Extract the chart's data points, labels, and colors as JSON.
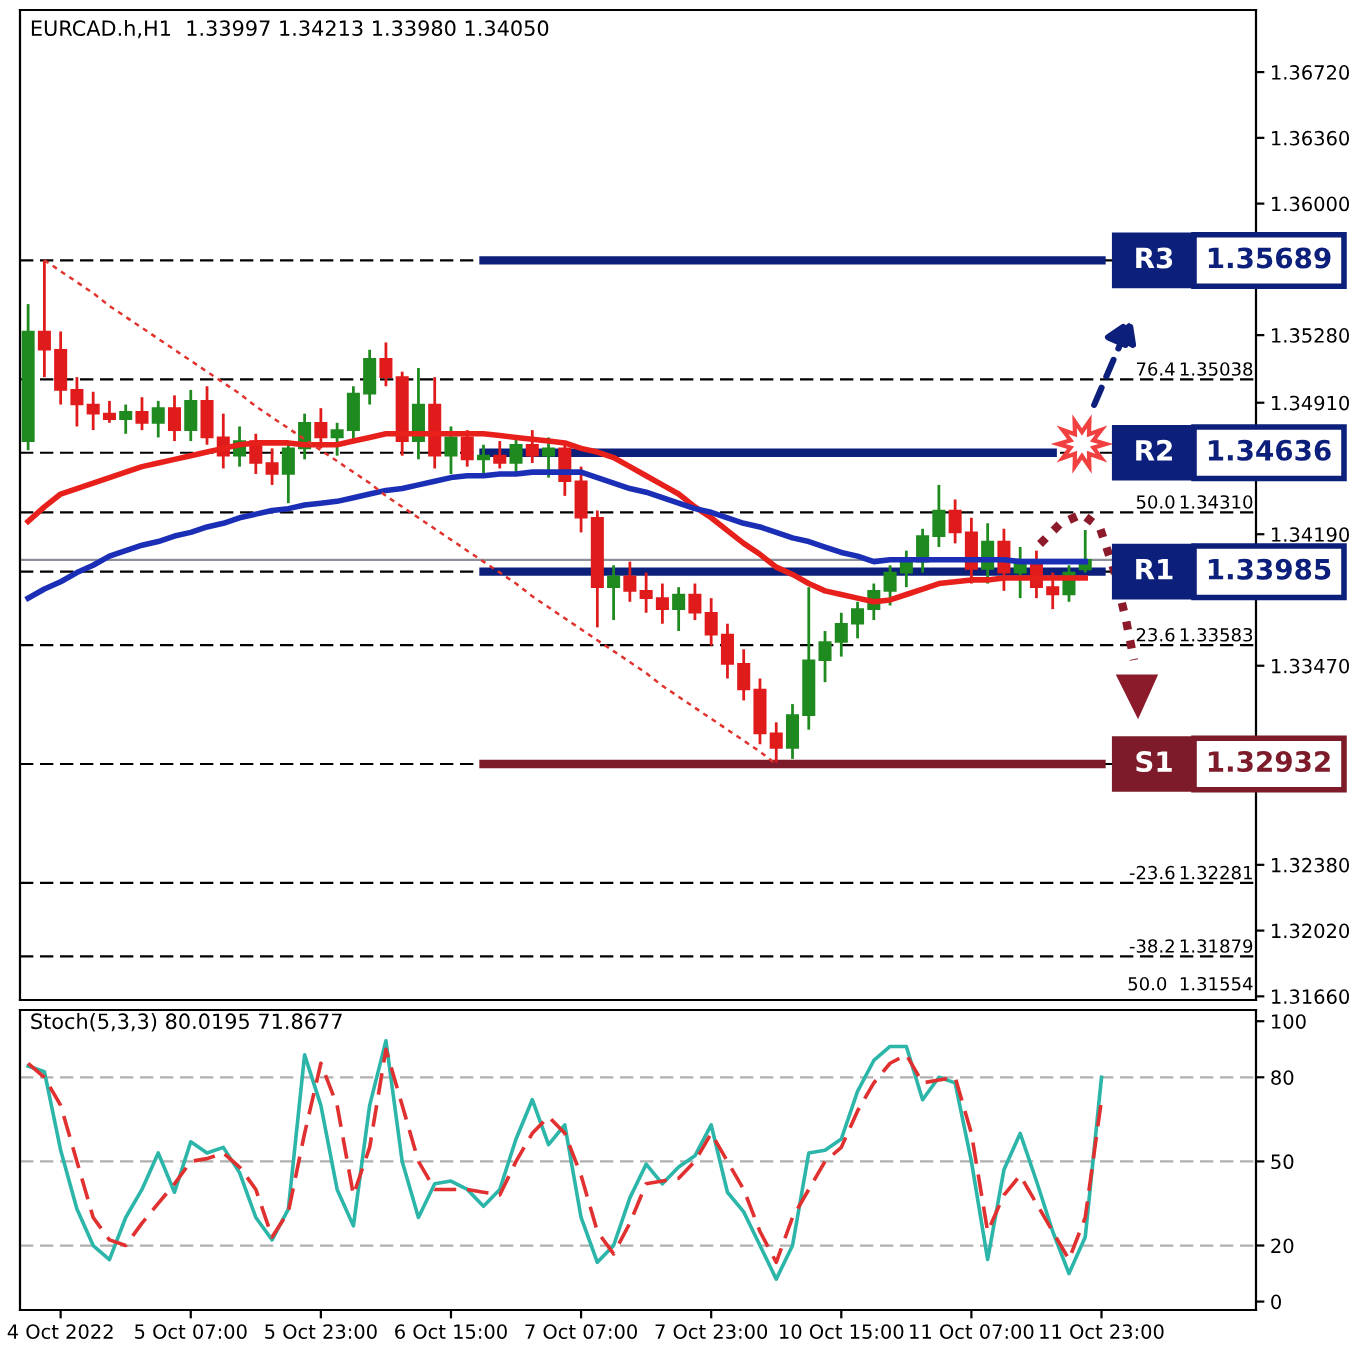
{
  "chart_data": [
    {
      "type": "candlestick",
      "title": "EURCAD.h,H1  1.33997 1.34213 1.33980 1.34050",
      "categories": [
        null,
        null,
        null,
        null,
        null,
        null,
        null,
        null,
        null,
        null,
        null,
        null,
        null,
        null,
        null,
        null,
        null,
        null,
        null,
        null,
        null,
        null,
        null,
        null,
        null,
        null,
        null,
        null,
        null,
        null,
        null,
        null,
        null,
        null,
        null,
        null,
        null,
        null,
        null,
        null,
        null,
        null,
        null,
        null,
        null,
        null,
        null,
        null,
        null,
        null,
        null,
        null,
        null,
        null,
        null,
        null,
        null,
        null,
        null,
        null,
        null,
        null,
        null,
        null,
        null,
        null,
        null,
        null,
        null,
        null,
        null,
        null,
        null,
        null,
        null,
        null
      ],
      "ohlc": [
        [
          1.347,
          1.3545,
          1.3465,
          1.353
        ],
        [
          1.353,
          1.3569,
          1.3505,
          1.352
        ],
        [
          1.352,
          1.353,
          1.349,
          1.3498
        ],
        [
          1.3498,
          1.3505,
          1.3478,
          1.349
        ],
        [
          1.349,
          1.3497,
          1.3476,
          1.3485
        ],
        [
          1.3485,
          1.3492,
          1.348,
          1.3482
        ],
        [
          1.3482,
          1.349,
          1.3474,
          1.3486
        ],
        [
          1.3486,
          1.3494,
          1.3476,
          1.348
        ],
        [
          1.348,
          1.3492,
          1.3472,
          1.3488
        ],
        [
          1.3488,
          1.3495,
          1.347,
          1.3476
        ],
        [
          1.3476,
          1.3498,
          1.347,
          1.3492
        ],
        [
          1.3492,
          1.35,
          1.3468,
          1.3472
        ],
        [
          1.3472,
          1.3485,
          1.3455,
          1.3462
        ],
        [
          1.3462,
          1.3478,
          1.3456,
          1.347
        ],
        [
          1.347,
          1.3474,
          1.3452,
          1.3458
        ],
        [
          1.3458,
          1.3466,
          1.3446,
          1.3452
        ],
        [
          1.3452,
          1.347,
          1.3436,
          1.3466
        ],
        [
          1.3466,
          1.3485,
          1.346,
          1.348
        ],
        [
          1.348,
          1.3488,
          1.3466,
          1.3472
        ],
        [
          1.3472,
          1.348,
          1.3462,
          1.3476
        ],
        [
          1.3476,
          1.35,
          1.347,
          1.3496
        ],
        [
          1.3496,
          1.352,
          1.349,
          1.3515
        ],
        [
          1.3515,
          1.3524,
          1.35,
          1.3505
        ],
        [
          1.3505,
          1.3508,
          1.3462,
          1.347
        ],
        [
          1.347,
          1.351,
          1.346,
          1.349
        ],
        [
          1.349,
          1.3505,
          1.3455,
          1.3462
        ],
        [
          1.3462,
          1.3478,
          1.3452,
          1.3472
        ],
        [
          1.3472,
          1.3476,
          1.3456,
          1.346
        ],
        [
          1.346,
          1.3468,
          1.345,
          1.3462
        ],
        [
          1.3462,
          1.347,
          1.3455,
          1.3458
        ],
        [
          1.3458,
          1.3472,
          1.3452,
          1.3468
        ],
        [
          1.3468,
          1.3476,
          1.3458,
          1.3462
        ],
        [
          1.3462,
          1.3472,
          1.345,
          1.3466
        ],
        [
          1.3466,
          1.347,
          1.344,
          1.3448
        ],
        [
          1.3448,
          1.3456,
          1.342,
          1.3428
        ],
        [
          1.3428,
          1.3432,
          1.3368,
          1.339
        ],
        [
          1.339,
          1.3402,
          1.3372,
          1.3396
        ],
        [
          1.3396,
          1.3404,
          1.3382,
          1.3388
        ],
        [
          1.3388,
          1.3398,
          1.3376,
          1.3384
        ],
        [
          1.3384,
          1.3392,
          1.337,
          1.3378
        ],
        [
          1.3378,
          1.339,
          1.3366,
          1.3386
        ],
        [
          1.3386,
          1.3392,
          1.3372,
          1.3376
        ],
        [
          1.3376,
          1.3384,
          1.3358,
          1.3364
        ],
        [
          1.3364,
          1.337,
          1.334,
          1.3348
        ],
        [
          1.3348,
          1.3356,
          1.3328,
          1.3334
        ],
        [
          1.3334,
          1.334,
          1.3304,
          1.331
        ],
        [
          1.331,
          1.3316,
          1.3294,
          1.3302
        ],
        [
          1.3302,
          1.3326,
          1.3296,
          1.332
        ],
        [
          1.332,
          1.339,
          1.3312,
          1.335
        ],
        [
          1.335,
          1.3366,
          1.3338,
          1.336
        ],
        [
          1.336,
          1.3376,
          1.3352,
          1.337
        ],
        [
          1.337,
          1.3382,
          1.3362,
          1.3378
        ],
        [
          1.3378,
          1.3392,
          1.3372,
          1.3388
        ],
        [
          1.3388,
          1.3402,
          1.338,
          1.3398
        ],
        [
          1.3398,
          1.341,
          1.339,
          1.3404
        ],
        [
          1.3404,
          1.3422,
          1.3398,
          1.3418
        ],
        [
          1.3418,
          1.3446,
          1.3412,
          1.3432
        ],
        [
          1.3432,
          1.3438,
          1.3414,
          1.342
        ],
        [
          1.342,
          1.3428,
          1.3392,
          1.34
        ],
        [
          1.34,
          1.3425,
          1.3392,
          1.3415
        ],
        [
          1.3415,
          1.3422,
          1.3388,
          1.3398
        ],
        [
          1.3398,
          1.3412,
          1.3384,
          1.3405
        ],
        [
          1.3405,
          1.341,
          1.3384,
          1.339
        ],
        [
          1.339,
          1.3398,
          1.3378,
          1.3386
        ],
        [
          1.3386,
          1.3402,
          1.3382,
          1.3398
        ],
        [
          1.33997,
          1.34213,
          1.3398,
          1.3405
        ],
        null,
        null,
        null,
        null,
        null,
        null,
        null,
        null,
        null,
        null
      ],
      "series": [
        {
          "type": "line",
          "color": "#e8201c",
          "values": [
            1.3426,
            1.3434,
            1.3441,
            1.3444,
            1.3447,
            1.345,
            1.3453,
            1.3456,
            1.3458,
            1.346,
            1.3462,
            1.3464,
            1.3466,
            1.3468,
            1.3469,
            1.3469,
            1.3469,
            1.3468,
            1.3468,
            1.3468,
            1.347,
            1.3472,
            1.3474,
            1.3474,
            1.3474,
            1.3474,
            1.3474,
            1.3474,
            1.3474,
            1.3473,
            1.3472,
            1.3471,
            1.347,
            1.3469,
            1.3466,
            1.3464,
            1.3461,
            1.3456,
            1.3451,
            1.3446,
            1.3441,
            1.3434,
            1.3428,
            1.3421,
            1.3414,
            1.3408,
            1.3401,
            1.3397,
            1.3392,
            1.3388,
            1.3386,
            1.3384,
            1.3382,
            1.3383,
            1.3386,
            1.3389,
            1.3392,
            1.3393,
            1.3394,
            1.3394,
            1.3395,
            1.3395,
            1.3395,
            1.3395,
            1.3395,
            1.3395,
            null,
            null,
            null,
            null,
            null,
            null,
            null,
            null,
            null,
            null
          ]
        },
        {
          "type": "line",
          "color": "#1a2fb5",
          "values": [
            1.3384,
            1.3389,
            1.3393,
            1.3398,
            1.3402,
            1.3407,
            1.341,
            1.3413,
            1.3415,
            1.3418,
            1.342,
            1.3423,
            1.3425,
            1.3428,
            1.343,
            1.3432,
            1.3433,
            1.3435,
            1.3436,
            1.3437,
            1.3439,
            1.3441,
            1.3443,
            1.3444,
            1.3446,
            1.3448,
            1.345,
            1.3451,
            1.3451,
            1.3452,
            1.3452,
            1.3453,
            1.3453,
            1.3453,
            1.3453,
            1.345,
            1.3447,
            1.3444,
            1.3442,
            1.3439,
            1.3436,
            1.3433,
            1.3431,
            1.3428,
            1.3425,
            1.3423,
            1.342,
            1.3417,
            1.3415,
            1.3412,
            1.3409,
            1.3407,
            1.3404,
            1.3405,
            1.3405,
            1.3405,
            1.3405,
            1.3405,
            1.3405,
            1.3405,
            1.3405,
            1.3404,
            1.3404,
            1.3404,
            1.3404,
            1.3404,
            null,
            null,
            null,
            null,
            null,
            null,
            null,
            null,
            null,
            null
          ]
        },
        {
          "type": "line",
          "color": "#e0332e",
          "line_style": "dotted",
          "values": [
            null,
            1.3569,
            1.3563,
            1.3557,
            1.3551,
            1.3544,
            1.3538,
            1.3532,
            1.3526,
            1.352,
            1.3514,
            1.3508,
            1.3502,
            1.3496,
            1.3489,
            1.3483,
            1.3477,
            1.3471,
            1.3465,
            1.3459,
            1.3453,
            1.3447,
            1.344,
            1.3434,
            1.3428,
            1.3422,
            1.3416,
            1.341,
            1.3404,
            1.3398,
            1.3392,
            1.3385,
            1.3379,
            1.3373,
            1.3367,
            1.3361,
            1.3355,
            1.3349,
            1.3343,
            1.3336,
            1.333,
            1.3324,
            1.3318,
            1.3312,
            1.3306,
            1.33,
            1.3293,
            null,
            null,
            null,
            null,
            null,
            null,
            null,
            null,
            null,
            null,
            null,
            null,
            null,
            null,
            null,
            null,
            null,
            null,
            null,
            null,
            null,
            null,
            null,
            null,
            null,
            null,
            null,
            null,
            null
          ]
        },
        {
          "type": "line",
          "name": "R3",
          "color": "#0c1f7a",
          "values": [
            null,
            null,
            null,
            null,
            null,
            null,
            null,
            null,
            null,
            null,
            null,
            null,
            null,
            null,
            null,
            null,
            null,
            null,
            null,
            null,
            null,
            null,
            null,
            null,
            null,
            null,
            null,
            null,
            1.35689,
            1.35689,
            1.35689,
            1.35689,
            1.35689,
            1.35689,
            1.35689,
            1.35689,
            1.35689,
            1.35689,
            1.35689,
            1.35689,
            1.35689,
            1.35689,
            1.35689,
            1.35689,
            1.35689,
            1.35689,
            1.35689,
            1.35689,
            1.35689,
            1.35689,
            1.35689,
            1.35689,
            1.35689,
            1.35689,
            1.35689,
            1.35689,
            1.35689,
            1.35689,
            1.35689,
            1.35689,
            1.35689,
            1.35689,
            1.35689,
            1.35689,
            1.35689,
            1.35689,
            1.35689,
            null,
            null,
            null,
            null,
            null,
            null,
            null,
            null,
            null
          ]
        },
        {
          "type": "line",
          "name": "R2",
          "color": "#0c1f7a",
          "values": [
            null,
            null,
            null,
            null,
            null,
            null,
            null,
            null,
            null,
            null,
            null,
            null,
            null,
            null,
            null,
            null,
            null,
            null,
            null,
            null,
            null,
            null,
            null,
            null,
            null,
            null,
            null,
            null,
            1.34636,
            1.34636,
            1.34636,
            1.34636,
            1.34636,
            1.34636,
            1.34636,
            1.34636,
            1.34636,
            1.34636,
            1.34636,
            1.34636,
            1.34636,
            1.34636,
            1.34636,
            1.34636,
            1.34636,
            1.34636,
            1.34636,
            1.34636,
            1.34636,
            1.34636,
            1.34636,
            1.34636,
            1.34636,
            1.34636,
            1.34636,
            1.34636,
            1.34636,
            1.34636,
            1.34636,
            1.34636,
            1.34636,
            1.34636,
            1.34636,
            1.34636,
            null,
            null,
            null,
            null,
            null,
            null,
            null,
            null,
            null,
            null,
            null,
            null
          ]
        },
        {
          "type": "line",
          "name": "R1",
          "color": "#0c1f7a",
          "values": [
            null,
            null,
            null,
            null,
            null,
            null,
            null,
            null,
            null,
            null,
            null,
            null,
            null,
            null,
            null,
            null,
            null,
            null,
            null,
            null,
            null,
            null,
            null,
            null,
            null,
            null,
            null,
            null,
            1.33985,
            1.33985,
            1.33985,
            1.33985,
            1.33985,
            1.33985,
            1.33985,
            1.33985,
            1.33985,
            1.33985,
            1.33985,
            1.33985,
            1.33985,
            1.33985,
            1.33985,
            1.33985,
            1.33985,
            1.33985,
            1.33985,
            1.33985,
            1.33985,
            1.33985,
            1.33985,
            1.33985,
            1.33985,
            1.33985,
            1.33985,
            1.33985,
            1.33985,
            1.33985,
            1.33985,
            1.33985,
            1.33985,
            1.33985,
            1.33985,
            1.33985,
            1.33985,
            1.33985,
            1.33985,
            null,
            null,
            null,
            null,
            null,
            null,
            null,
            null,
            null
          ]
        },
        {
          "type": "line",
          "name": "S1",
          "color": "#7d1b2b",
          "values": [
            null,
            null,
            null,
            null,
            null,
            null,
            null,
            null,
            null,
            null,
            null,
            null,
            null,
            null,
            null,
            null,
            null,
            null,
            null,
            null,
            null,
            null,
            null,
            null,
            null,
            null,
            null,
            null,
            1.32932,
            1.32932,
            1.32932,
            1.32932,
            1.32932,
            1.32932,
            1.32932,
            1.32932,
            1.32932,
            1.32932,
            1.32932,
            1.32932,
            1.32932,
            1.32932,
            1.32932,
            1.32932,
            1.32932,
            1.32932,
            1.32932,
            1.32932,
            1.32932,
            1.32932,
            1.32932,
            1.32932,
            1.32932,
            1.32932,
            1.32932,
            1.32932,
            1.32932,
            1.32932,
            1.32932,
            1.32932,
            1.32932,
            1.32932,
            1.32932,
            1.32932,
            1.32932,
            1.32932,
            1.32932,
            null,
            null,
            null,
            null,
            null,
            null,
            null,
            null,
            null
          ]
        }
      ],
      "ref_lines": [
        {
          "axis": "y",
          "value": 1.35689,
          "color": "#000000",
          "line_style": "dashed"
        },
        {
          "axis": "y",
          "value": 1.35038,
          "label": "1.35038",
          "color": "#000000",
          "line_style": "dashed"
        },
        {
          "axis": "y",
          "value": 1.34636,
          "color": "#000000",
          "line_style": "dashed"
        },
        {
          "axis": "y",
          "value": 1.3431,
          "label": "1.34310",
          "color": "#000000",
          "line_style": "dashed"
        },
        {
          "axis": "y",
          "value": 1.33985,
          "color": "#000000",
          "line_style": "dashed"
        },
        {
          "axis": "y",
          "value": 1.33583,
          "label": "1.33583",
          "color": "#000000",
          "line_style": "dashed"
        },
        {
          "axis": "y",
          "value": 1.32932,
          "color": "#000000",
          "line_style": "dashed"
        },
        {
          "axis": "y",
          "value": 1.32281,
          "label": "1.32281",
          "color": "#000000",
          "line_style": "dashed"
        },
        {
          "axis": "y",
          "value": 1.31879,
          "label": "1.31879",
          "color": "#000000",
          "line_style": "dashed"
        },
        {
          "axis": "y",
          "value": 1.3405,
          "color": "#8a8f99",
          "line_style": "solid"
        }
      ],
      "annotations": [
        "1.35689",
        "1.34636",
        "1.33985",
        "1.32932",
        {
          "text": "76.4",
          "y": 1.35038
        },
        {
          "text": "50.0",
          "y": 1.3431
        },
        {
          "text": "23.6",
          "y": 1.33583
        },
        {
          "text": "-23.6",
          "y": 1.32281
        },
        {
          "text": "-38.2",
          "y": 1.31879
        },
        "50.0  1.31554"
      ],
      "ylim": [
        1.3164,
        1.3706
      ],
      "yticks": [
        {
          "value": 1.3672,
          "label": "1.36720"
        },
        {
          "value": 1.3636,
          "label": "1.36360"
        },
        {
          "value": 1.36,
          "label": "1.36000"
        },
        {
          "value": 1.3528,
          "label": "1.35280"
        },
        {
          "value": 1.3491,
          "label": "1.34910"
        },
        {
          "value": 1.3419,
          "label": "1.34190"
        },
        {
          "value": 1.3347,
          "label": "1.33470"
        },
        {
          "value": 1.3238,
          "label": "1.32380"
        },
        {
          "value": 1.3202,
          "label": "1.32020"
        },
        {
          "value": 1.3166,
          "label": "1.31660"
        }
      ],
      "tick_labels": "y"
    },
    {
      "type": "line",
      "title": "Stoch(5,3,3) 80.0195 71.8677",
      "categories": [
        null,
        null,
        "4 Oct 2022",
        null,
        null,
        null,
        null,
        null,
        null,
        null,
        "5 Oct 07:00",
        null,
        null,
        null,
        null,
        null,
        null,
        null,
        "5 Oct 23:00",
        null,
        null,
        null,
        null,
        null,
        null,
        null,
        "6 Oct 15:00",
        null,
        null,
        null,
        null,
        null,
        null,
        null,
        "7 Oct 07:00",
        null,
        null,
        null,
        null,
        null,
        null,
        null,
        "7 Oct 23:00",
        null,
        null,
        null,
        null,
        null,
        null,
        null,
        "10 Oct 15:00",
        null,
        null,
        null,
        null,
        null,
        null,
        null,
        "11 Oct 07:00",
        null,
        null,
        null,
        null,
        null,
        null,
        null,
        "11 Oct 23:00",
        null,
        null,
        null,
        null,
        null,
        null,
        null,
        null,
        null
      ],
      "series": [
        {
          "color": "#2cb5a9",
          "line_style": "solid",
          "values": [
            84,
            82,
            54,
            33,
            20,
            15,
            30,
            40,
            53,
            39,
            57,
            53,
            55,
            46,
            30,
            22,
            33,
            88,
            70,
            40,
            27,
            70,
            93,
            50,
            30,
            42,
            43,
            40,
            34,
            40,
            58,
            72,
            56,
            63,
            30,
            14,
            20,
            37,
            49,
            42,
            48,
            52,
            63,
            39,
            32,
            20,
            8,
            20,
            53,
            54,
            58,
            75,
            86,
            91,
            91,
            72,
            80,
            78,
            50,
            15,
            47,
            60,
            43,
            25,
            10,
            23,
            80,
            null,
            null,
            null,
            null,
            null,
            null,
            null,
            null,
            null
          ]
        },
        {
          "color": "#e03030",
          "line_style": "dashed",
          "values": [
            85,
            80,
            70,
            50,
            30,
            22,
            20,
            28,
            35,
            42,
            50,
            51,
            53,
            48,
            40,
            23,
            32,
            60,
            85,
            70,
            38,
            55,
            90,
            70,
            50,
            40,
            40,
            40,
            39,
            38,
            50,
            60,
            66,
            60,
            45,
            25,
            17,
            28,
            42,
            43,
            44,
            50,
            60,
            50,
            40,
            25,
            14,
            30,
            40,
            50,
            55,
            68,
            78,
            85,
            88,
            78,
            79,
            80,
            60,
            25,
            38,
            45,
            35,
            25,
            15,
            30,
            72,
            null,
            null,
            null,
            null,
            null,
            null,
            null,
            null,
            null
          ]
        }
      ],
      "ref_lines": [
        {
          "axis": "y",
          "value": 80,
          "color": "#b0b0b0",
          "line_style": "dashed"
        },
        {
          "axis": "y",
          "value": 50,
          "color": "#b0b0b0",
          "line_style": "dashed"
        },
        {
          "axis": "y",
          "value": 20,
          "color": "#b0b0b0",
          "line_style": "dashed"
        }
      ],
      "ylim": [
        -3,
        104
      ],
      "yticks": [
        0,
        20,
        50,
        80,
        100
      ]
    }
  ]
}
